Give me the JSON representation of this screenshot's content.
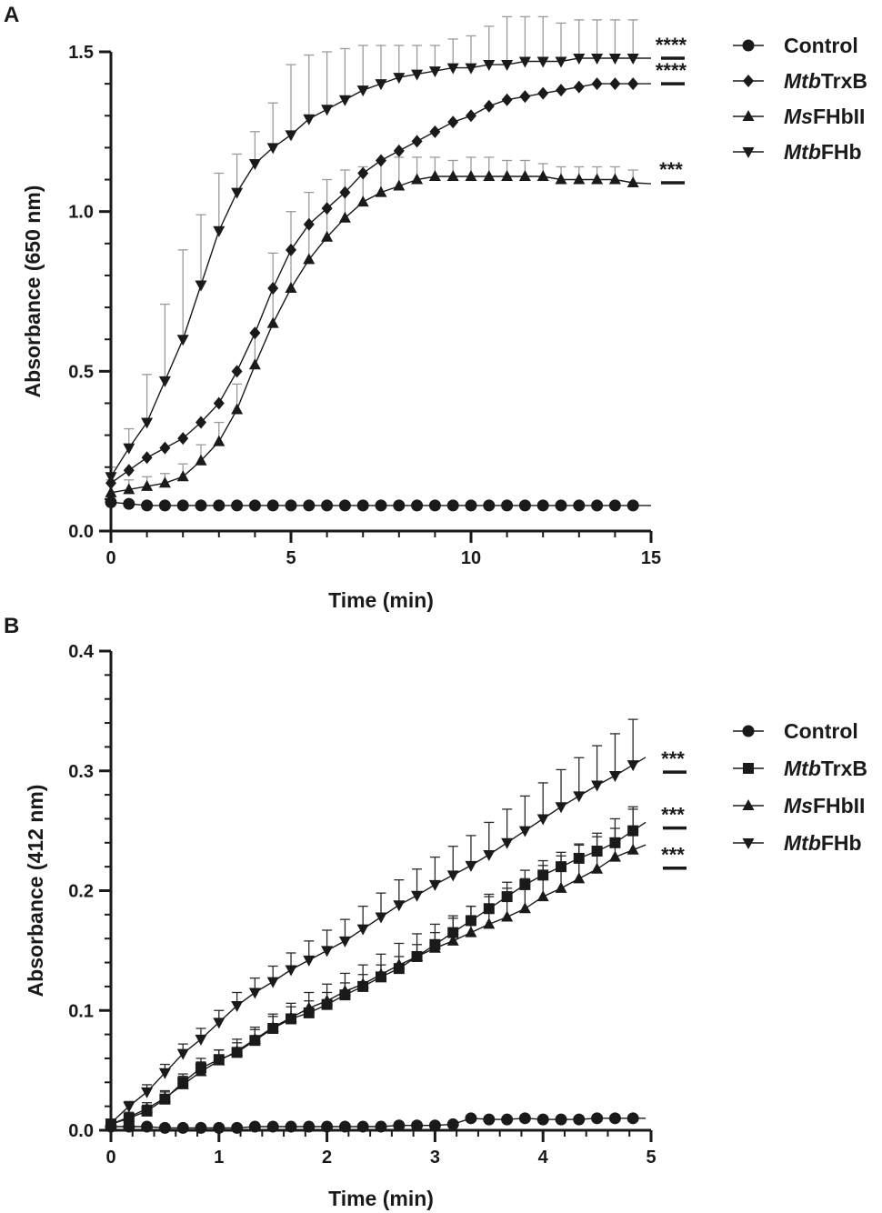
{
  "chart_data": [
    {
      "panel": "A",
      "type": "line",
      "xlabel": "Time (min)",
      "ylabel": "Absorbance (650 nm)",
      "xlim": [
        0,
        15
      ],
      "ylim": [
        0,
        1.5
      ],
      "xticks": [
        "0",
        "5",
        "10",
        "15"
      ],
      "yticks": [
        "0.0",
        "0.5",
        "1.0",
        "1.5"
      ],
      "legend_position": "top-right",
      "x": [
        0,
        0.5,
        1,
        1.5,
        2,
        2.5,
        3,
        3.5,
        4,
        4.5,
        5,
        5.5,
        6,
        6.5,
        7,
        7.5,
        8,
        8.5,
        9,
        9.5,
        10,
        10.5,
        11,
        11.5,
        12,
        12.5,
        13,
        13.5,
        14,
        14.5
      ],
      "series": [
        {
          "name": "Control",
          "prefix": "",
          "suffix": "Control",
          "marker": "circle",
          "values": [
            0.09,
            0.085,
            0.08,
            0.08,
            0.08,
            0.08,
            0.08,
            0.08,
            0.08,
            0.08,
            0.08,
            0.08,
            0.08,
            0.08,
            0.08,
            0.08,
            0.08,
            0.08,
            0.08,
            0.08,
            0.08,
            0.08,
            0.08,
            0.08,
            0.08,
            0.08,
            0.08,
            0.08,
            0.08,
            0.08
          ],
          "errors": []
        },
        {
          "name": "MtbTrxB",
          "prefix": "Mtb",
          "suffix": "TrxB",
          "marker": "diamond",
          "values": [
            0.15,
            0.19,
            0.23,
            0.26,
            0.29,
            0.34,
            0.4,
            0.5,
            0.62,
            0.76,
            0.88,
            0.96,
            1.01,
            1.06,
            1.12,
            1.16,
            1.19,
            1.22,
            1.25,
            1.28,
            1.3,
            1.33,
            1.35,
            1.36,
            1.37,
            1.38,
            1.39,
            1.4,
            1.4,
            1.4
          ],
          "errors": []
        },
        {
          "name": "MsFHbII",
          "prefix": "Ms",
          "suffix": "FHbII",
          "marker": "triangle-up",
          "values": [
            0.12,
            0.13,
            0.14,
            0.15,
            0.17,
            0.22,
            0.28,
            0.38,
            0.52,
            0.65,
            0.76,
            0.85,
            0.92,
            0.98,
            1.03,
            1.06,
            1.08,
            1.1,
            1.11,
            1.11,
            1.11,
            1.11,
            1.11,
            1.11,
            1.11,
            1.1,
            1.1,
            1.1,
            1.1,
            1.09
          ],
          "errors": [
            0.04,
            0.03,
            0.03,
            0.03,
            0.04,
            0.05,
            0.06,
            0.08,
            0.1,
            0.22,
            0.24,
            0.21,
            0.18,
            0.15,
            0.11,
            0.1,
            0.09,
            0.07,
            0.06,
            0.05,
            0.06,
            0.06,
            0.05,
            0.05,
            0.04,
            0.04,
            0.04,
            0.04,
            0.04,
            0.04
          ]
        },
        {
          "name": "MtbFHb",
          "prefix": "Mtb",
          "suffix": "FHb",
          "marker": "triangle-down",
          "values": [
            0.17,
            0.26,
            0.34,
            0.47,
            0.6,
            0.77,
            0.94,
            1.06,
            1.15,
            1.2,
            1.24,
            1.29,
            1.32,
            1.35,
            1.38,
            1.4,
            1.42,
            1.43,
            1.44,
            1.45,
            1.45,
            1.46,
            1.46,
            1.47,
            1.47,
            1.47,
            1.48,
            1.48,
            1.48,
            1.48
          ],
          "errors": [
            0.03,
            0.06,
            0.15,
            0.24,
            0.28,
            0.22,
            0.18,
            0.12,
            0.1,
            0.14,
            0.22,
            0.2,
            0.18,
            0.16,
            0.14,
            0.12,
            0.1,
            0.09,
            0.08,
            0.09,
            0.1,
            0.12,
            0.15,
            0.14,
            0.14,
            0.12,
            0.12,
            0.12,
            0.12,
            0.12
          ]
        }
      ],
      "significance": [
        {
          "label": "****",
          "series": "MtbFHb"
        },
        {
          "label": "****",
          "series": "MtbTrxB"
        },
        {
          "label": "***",
          "series": "MsFHbII"
        }
      ]
    },
    {
      "panel": "B",
      "type": "line",
      "xlabel": "Time (min)",
      "ylabel": "Absorbance (412 nm)",
      "xlim": [
        0,
        5
      ],
      "ylim": [
        0,
        0.4
      ],
      "xticks": [
        "0",
        "1",
        "2",
        "3",
        "4",
        "5"
      ],
      "yticks": [
        "0.0",
        "0.1",
        "0.2",
        "0.3",
        "0.4"
      ],
      "legend_position": "right",
      "x": [
        0,
        0.167,
        0.333,
        0.5,
        0.667,
        0.833,
        1.0,
        1.167,
        1.333,
        1.5,
        1.667,
        1.833,
        2.0,
        2.167,
        2.333,
        2.5,
        2.667,
        2.833,
        3.0,
        3.167,
        3.333,
        3.5,
        3.667,
        3.833,
        4.0,
        4.167,
        4.333,
        4.5,
        4.667,
        4.833
      ],
      "series": [
        {
          "name": "Control",
          "prefix": "",
          "suffix": "Control",
          "marker": "circle",
          "values": [
            0.003,
            0.003,
            0.003,
            0.002,
            0.002,
            0.002,
            0.002,
            0.002,
            0.003,
            0.003,
            0.003,
            0.003,
            0.003,
            0.003,
            0.003,
            0.003,
            0.004,
            0.004,
            0.004,
            0.005,
            0.01,
            0.009,
            0.009,
            0.01,
            0.009,
            0.009,
            0.009,
            0.01,
            0.01,
            0.01
          ],
          "errors": []
        },
        {
          "name": "MtbTrxB",
          "prefix": "Mtb",
          "suffix": "TrxB",
          "marker": "square",
          "values": [
            0.005,
            0.01,
            0.016,
            0.026,
            0.04,
            0.052,
            0.059,
            0.065,
            0.075,
            0.085,
            0.093,
            0.098,
            0.105,
            0.113,
            0.12,
            0.128,
            0.135,
            0.145,
            0.155,
            0.165,
            0.175,
            0.185,
            0.195,
            0.205,
            0.213,
            0.22,
            0.227,
            0.233,
            0.24,
            0.25
          ],
          "errors": [
            0.003,
            0.004,
            0.005,
            0.006,
            0.007,
            0.008,
            0.008,
            0.008,
            0.009,
            0.01,
            0.01,
            0.01,
            0.01,
            0.01,
            0.01,
            0.01,
            0.01,
            0.01,
            0.01,
            0.012,
            0.012,
            0.012,
            0.012,
            0.012,
            0.012,
            0.012,
            0.012,
            0.012,
            0.012,
            0.018
          ]
        },
        {
          "name": "MsFHbII",
          "prefix": "Ms",
          "suffix": "FHbII",
          "marker": "triangle-up",
          "values": [
            0.005,
            0.011,
            0.018,
            0.027,
            0.038,
            0.049,
            0.058,
            0.066,
            0.076,
            0.086,
            0.094,
            0.102,
            0.108,
            0.116,
            0.122,
            0.13,
            0.138,
            0.145,
            0.152,
            0.158,
            0.165,
            0.172,
            0.178,
            0.185,
            0.195,
            0.202,
            0.21,
            0.218,
            0.228,
            0.234
          ],
          "errors": [
            0.003,
            0.004,
            0.005,
            0.006,
            0.007,
            0.008,
            0.009,
            0.01,
            0.01,
            0.011,
            0.012,
            0.013,
            0.014,
            0.015,
            0.016,
            0.017,
            0.018,
            0.019,
            0.02,
            0.021,
            0.022,
            0.023,
            0.024,
            0.025,
            0.026,
            0.027,
            0.028,
            0.03,
            0.032,
            0.036
          ]
        },
        {
          "name": "MtbFHb",
          "prefix": "Mtb",
          "suffix": "FHb",
          "marker": "triangle-down",
          "values": [
            0.006,
            0.02,
            0.032,
            0.048,
            0.064,
            0.076,
            0.09,
            0.104,
            0.115,
            0.124,
            0.134,
            0.142,
            0.15,
            0.158,
            0.168,
            0.178,
            0.188,
            0.196,
            0.205,
            0.213,
            0.221,
            0.23,
            0.24,
            0.25,
            0.26,
            0.27,
            0.279,
            0.288,
            0.296,
            0.305
          ],
          "errors": [
            0.003,
            0.004,
            0.006,
            0.007,
            0.008,
            0.009,
            0.01,
            0.011,
            0.012,
            0.013,
            0.014,
            0.016,
            0.017,
            0.018,
            0.019,
            0.02,
            0.021,
            0.022,
            0.023,
            0.024,
            0.025,
            0.027,
            0.028,
            0.029,
            0.03,
            0.031,
            0.032,
            0.033,
            0.035,
            0.038
          ]
        }
      ],
      "significance": [
        {
          "label": "***",
          "series": "MtbFHb"
        },
        {
          "label": "***",
          "series": "MtbTrxB"
        },
        {
          "label": "***",
          "series": "MsFHbII"
        }
      ]
    }
  ]
}
